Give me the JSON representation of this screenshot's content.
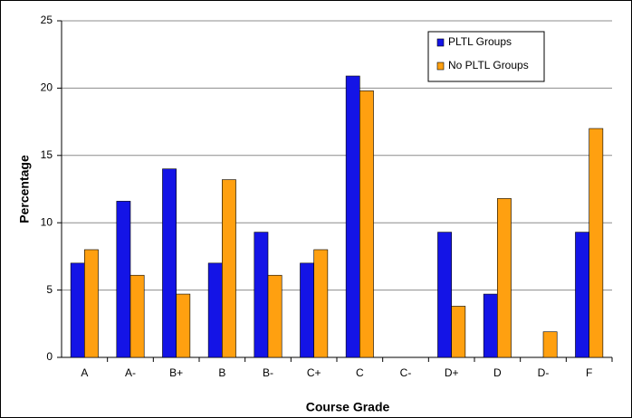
{
  "chart_data": {
    "type": "bar",
    "x_label": "Course Grade",
    "y_label": "Percentage",
    "categories": [
      "A",
      "A-",
      "B+",
      "B",
      "B-",
      "C+",
      "C",
      "C-",
      "D+",
      "D",
      "D-",
      "F"
    ],
    "series": [
      {
        "name": "PLTL Groups",
        "color": "#1414e6",
        "values": [
          7.0,
          11.6,
          14.0,
          7.0,
          9.3,
          7.0,
          20.9,
          0,
          9.3,
          4.7,
          0,
          9.3
        ]
      },
      {
        "name": "No PLTL Groups",
        "color": "#ffa010",
        "values": [
          8.0,
          6.1,
          4.7,
          13.2,
          6.1,
          8.0,
          19.8,
          0,
          3.8,
          11.8,
          1.9,
          17.0
        ]
      }
    ],
    "ylim": [
      0,
      25
    ],
    "yticks": [
      0,
      5,
      10,
      15,
      20,
      25
    ],
    "grid": true,
    "legend": "upper right"
  }
}
